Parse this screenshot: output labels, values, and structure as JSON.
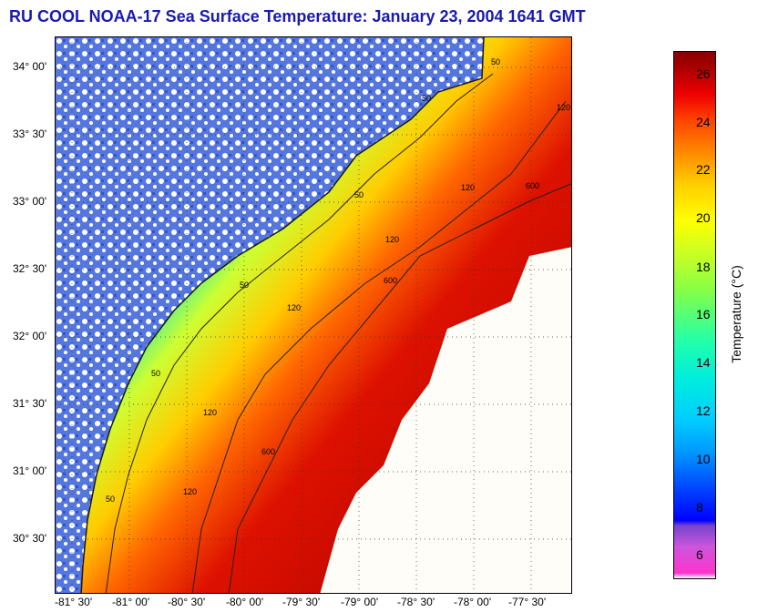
{
  "title": "RU COOL  NOAA-17  Sea Surface Temperature:  January 23, 2004 1641 GMT",
  "map": {
    "lat_labels": [
      "34° 00'",
      "33° 30'",
      "33° 00'",
      "32° 30'",
      "32° 00'",
      "31° 30'",
      "31° 00'",
      "30° 30'"
    ],
    "lon_labels": [
      "-81° 30'",
      "-81° 00'",
      "-80° 30'",
      "-80° 00'",
      "-79° 30'",
      "-79° 00'",
      "-78° 30'",
      "-78° 00'",
      "-77° 30'"
    ],
    "contour_labels": [
      "50",
      "50",
      "50",
      "50",
      "50",
      "50",
      "120",
      "120",
      "120",
      "120",
      "120",
      "120",
      "600",
      "600",
      "600"
    ],
    "colors": {
      "land": "#ffffff",
      "coast": "#1a1a1a",
      "cold": "#0040ff",
      "warm": "#cc0000"
    }
  },
  "colorbar": {
    "label": "Temperature (°C)",
    "ticks": [
      "26",
      "24",
      "22",
      "20",
      "18",
      "16",
      "14",
      "12",
      "10",
      "8",
      "6"
    ],
    "range": [
      5,
      27
    ]
  }
}
